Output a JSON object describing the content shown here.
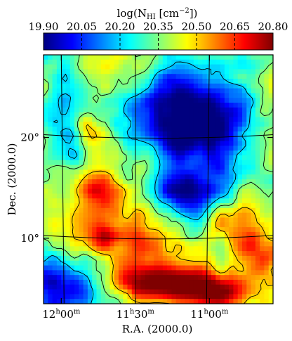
{
  "colorbar": {
    "title": "log(N",
    "title_sub": "HI",
    "title_tail": " [cm",
    "title_sup": "−2",
    "title_close": "])",
    "ticks": [
      "19.90",
      "20.05",
      "20.20",
      "20.35",
      "20.50",
      "20.65",
      "20.80"
    ],
    "range": [
      19.9,
      20.8
    ],
    "colors": [
      "#00007f",
      "#0000ff",
      "#0080ff",
      "#00ffff",
      "#80ff80",
      "#ffff00",
      "#ff8000",
      "#ff0000",
      "#7f0000"
    ]
  },
  "axes": {
    "ylabel": "Dec. (2000.0)",
    "xlabel": "R.A. (2000.0)",
    "yticks": [
      {
        "label": "20°",
        "value": 20
      },
      {
        "label": "10°",
        "value": 10
      }
    ],
    "xticks": [
      {
        "h": "12",
        "hsup": "h",
        "m": "00",
        "msup": "m",
        "value": 12.0
      },
      {
        "h": "11",
        "hsup": "h",
        "m": "30",
        "msup": "m",
        "value": 11.5
      },
      {
        "h": "11",
        "hsup": "h",
        "m": "00",
        "msup": "m",
        "value": 11.0
      }
    ],
    "dec_range": [
      3.5,
      28.2
    ],
    "ra_range": [
      12.12,
      10.57
    ]
  },
  "map": {
    "type": "HI column density map with contours",
    "contour_color": "#000000"
  }
}
